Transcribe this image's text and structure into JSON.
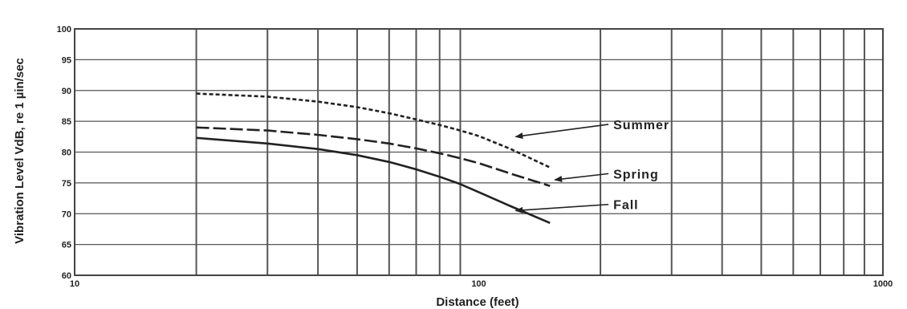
{
  "chart_data": {
    "type": "line",
    "x_scale": "log",
    "xlim": [
      10,
      1000
    ],
    "ylim": [
      60,
      100
    ],
    "grid": true,
    "xlabel": "Distance (feet)",
    "ylabel": "Vibration Level VdB, re 1 µin/sec",
    "x_tick_labels": [
      "10",
      "100",
      "1000"
    ],
    "y_tick_labels": [
      "100",
      "95",
      "90",
      "85",
      "80",
      "75",
      "70",
      "65",
      "60"
    ],
    "y_ticks": [
      100,
      95,
      90,
      85,
      80,
      75,
      70,
      65,
      60
    ],
    "x_ticks": [
      10,
      100,
      1000
    ],
    "series": [
      {
        "name": "Summer",
        "line_style": "dashed-short",
        "x": [
          20,
          30,
          40,
          50,
          60,
          70,
          80,
          90,
          100,
          120,
          150
        ],
        "y": [
          89.5,
          89.0,
          88.2,
          87.3,
          86.3,
          85.3,
          84.4,
          83.5,
          82.6,
          80.5,
          77.5
        ],
        "label_at": [
          120,
          82.5
        ],
        "label_pos": [
          200,
          84.5
        ]
      },
      {
        "name": "Spring",
        "line_style": "dashed-long",
        "x": [
          20,
          30,
          40,
          50,
          60,
          70,
          80,
          90,
          100,
          120,
          150
        ],
        "y": [
          84.0,
          83.5,
          82.8,
          82.1,
          81.4,
          80.6,
          79.8,
          79.0,
          78.2,
          76.5,
          74.5
        ],
        "label_at": [
          150,
          75.5
        ],
        "label_pos": [
          200,
          76.5
        ]
      },
      {
        "name": "Fall",
        "line_style": "solid",
        "x": [
          20,
          30,
          40,
          50,
          60,
          70,
          80,
          90,
          100,
          120,
          150
        ],
        "y": [
          82.3,
          81.4,
          80.5,
          79.5,
          78.4,
          77.2,
          76.0,
          74.8,
          73.5,
          71.2,
          68.5
        ],
        "label_at": [
          120,
          70.5
        ],
        "label_pos": [
          200,
          71.5
        ]
      }
    ]
  }
}
